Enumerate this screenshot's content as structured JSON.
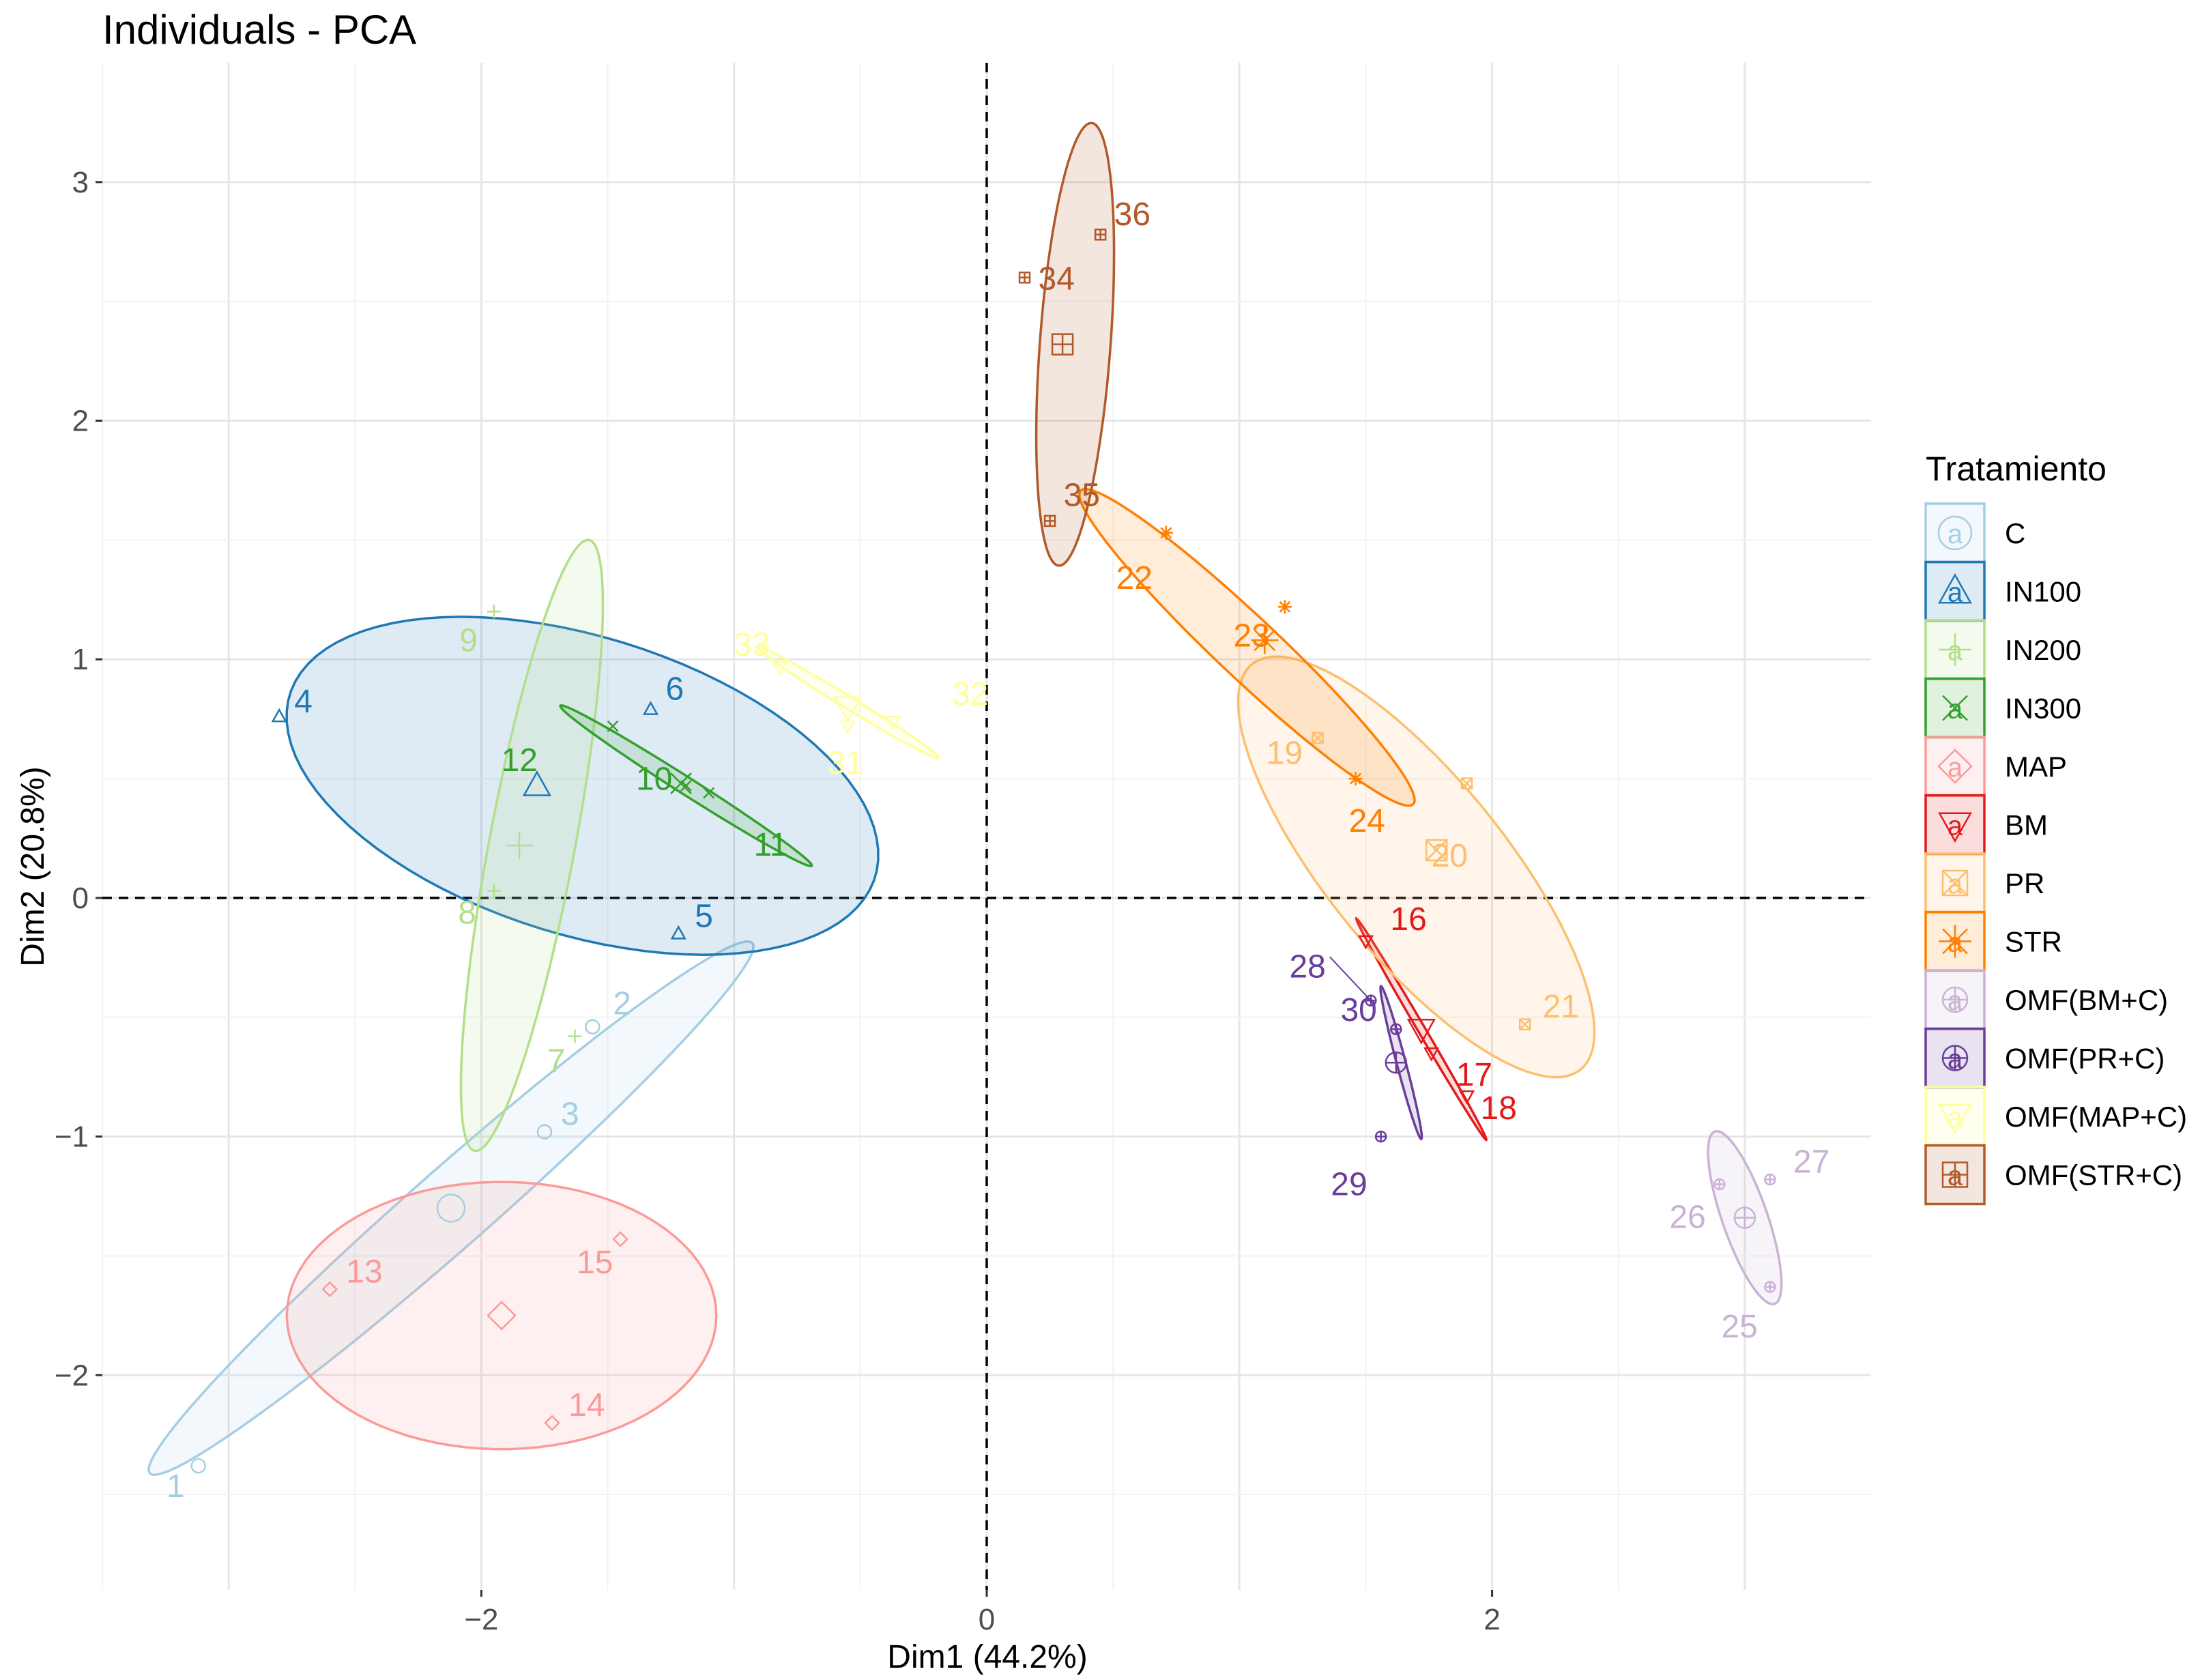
{
  "chart_data": {
    "type": "scatter",
    "title": "Individuals - PCA",
    "xlabel": "Dim1 (44.2%)",
    "ylabel": "Dim2 (20.8%)",
    "xlim": [
      -3.5,
      3.5
    ],
    "ylim": [
      -2.9,
      3.5
    ],
    "xticks": [
      -2,
      0,
      2
    ],
    "xtick_labels": [
      "−2",
      "0",
      "2"
    ],
    "yticks": [
      -2,
      -1,
      0,
      1,
      2,
      3
    ],
    "ytick_labels": [
      "−2",
      "−1",
      "0",
      "1",
      "2",
      "3"
    ],
    "reference_lines": {
      "x": 0,
      "y": 0,
      "style": "dashed"
    },
    "grid": true,
    "legend": {
      "title": "Tratamiento",
      "position": "right"
    },
    "groups": [
      {
        "name": "C",
        "color": "#a6cee3",
        "shape": "circle",
        "center": [
          -2.12,
          -1.3
        ],
        "ellipse": {
          "cx": -2.12,
          "cy": -1.3,
          "rx": 1.63,
          "ry": 0.16,
          "angle_deg": 43
        },
        "points": [
          {
            "id": "1",
            "x": -3.12,
            "y": -2.38
          },
          {
            "id": "2",
            "x": -1.56,
            "y": -0.54
          },
          {
            "id": "3",
            "x": -1.75,
            "y": -0.98
          }
        ]
      },
      {
        "name": "IN100",
        "color": "#1f78b4",
        "shape": "triangle",
        "center": [
          -1.78,
          0.47
        ],
        "ellipse": {
          "cx": -1.6,
          "cy": 0.47,
          "rx": 1.22,
          "ry": 0.62,
          "angle_deg": -19
        },
        "points": [
          {
            "id": "4",
            "x": -2.8,
            "y": 0.76
          },
          {
            "id": "5",
            "x": -1.22,
            "y": -0.15
          },
          {
            "id": "6",
            "x": -1.33,
            "y": 0.79
          }
        ]
      },
      {
        "name": "IN200",
        "color": "#b2df8a",
        "shape": "plus",
        "center": [
          -1.85,
          0.22
        ],
        "ellipse": {
          "cx": -1.8,
          "cy": 0.22,
          "rx": 1.3,
          "ry": 0.17,
          "angle_deg": 80
        },
        "points": [
          {
            "id": "7",
            "x": -1.63,
            "y": -0.58
          },
          {
            "id": "8",
            "x": -1.95,
            "y": 0.03
          },
          {
            "id": "9",
            "x": -1.95,
            "y": 1.2
          }
        ]
      },
      {
        "name": "IN300",
        "color": "#33a02c",
        "shape": "x",
        "center": [
          -1.21,
          0.48
        ],
        "ellipse": {
          "cx": -1.19,
          "cy": 0.47,
          "rx": 0.6,
          "ry": 0.035,
          "angle_deg": -34
        },
        "points": [
          {
            "id": "10",
            "x": -1.19,
            "y": 0.47
          },
          {
            "id": "11",
            "x": -1.1,
            "y": 0.44
          },
          {
            "id": "12",
            "x": -1.48,
            "y": 0.72
          }
        ]
      },
      {
        "name": "MAP",
        "color": "#fb9a99",
        "shape": "diamond",
        "center": [
          -1.92,
          -1.75
        ],
        "ellipse": {
          "cx": -1.92,
          "cy": -1.75,
          "rx": 0.85,
          "ry": 0.56,
          "angle_deg": 0
        },
        "points": [
          {
            "id": "13",
            "x": -2.6,
            "y": -1.64
          },
          {
            "id": "14",
            "x": -1.72,
            "y": -2.2
          },
          {
            "id": "15",
            "x": -1.45,
            "y": -1.43
          }
        ]
      },
      {
        "name": "BM",
        "color": "#e31a1c",
        "shape": "triangle-down",
        "center": [
          1.72,
          -0.55
        ],
        "ellipse": {
          "cx": 1.72,
          "cy": -0.55,
          "rx": 0.53,
          "ry": 0.015,
          "angle_deg": -61
        },
        "points": [
          {
            "id": "16",
            "x": 1.5,
            "y": -0.18
          },
          {
            "id": "17",
            "x": 1.76,
            "y": -0.65
          },
          {
            "id": "18",
            "x": 1.9,
            "y": -0.83
          }
        ]
      },
      {
        "name": "PR",
        "color": "#fdbf6f",
        "shape": "square-x",
        "center": [
          1.78,
          0.2
        ],
        "ellipse": {
          "cx": 1.7,
          "cy": 0.13,
          "rx": 1.07,
          "ry": 0.36,
          "angle_deg": -53
        },
        "points": [
          {
            "id": "19",
            "x": 1.31,
            "y": 0.67
          },
          {
            "id": "20",
            "x": 1.9,
            "y": 0.48
          },
          {
            "id": "21",
            "x": 2.13,
            "y": -0.53
          }
        ]
      },
      {
        "name": "STR",
        "color": "#ff7f00",
        "shape": "asterisk",
        "center": [
          1.1,
          1.08
        ],
        "ellipse": {
          "cx": 1.03,
          "cy": 1.05,
          "rx": 0.93,
          "ry": 0.125,
          "angle_deg": -45
        },
        "points": [
          {
            "id": "22",
            "x": 0.71,
            "y": 1.53
          },
          {
            "id": "23",
            "x": 1.18,
            "y": 1.22
          },
          {
            "id": "24",
            "x": 1.46,
            "y": 0.5
          }
        ]
      },
      {
        "name": "OMF(BM+C)",
        "color": "#cab2d6",
        "shape": "circle-plus",
        "center": [
          3.0,
          -1.34
        ],
        "ellipse": {
          "cx": 3.0,
          "cy": -1.34,
          "rx": 0.38,
          "ry": 0.09,
          "angle_deg": -72
        },
        "points": [
          {
            "id": "25",
            "x": 3.1,
            "y": -1.63
          },
          {
            "id": "26",
            "x": 2.9,
            "y": -1.2
          },
          {
            "id": "27",
            "x": 3.1,
            "y": -1.18
          }
        ]
      },
      {
        "name": "OMF(PR+C)",
        "color": "#6a3d9a",
        "shape": "circle-plus",
        "center": [
          1.62,
          -0.69
        ],
        "ellipse": {
          "cx": 1.64,
          "cy": -0.69,
          "rx": 0.33,
          "ry": 0.018,
          "angle_deg": -76
        },
        "points": [
          {
            "id": "28",
            "x": 1.52,
            "y": -0.43
          },
          {
            "id": "29",
            "x": 1.56,
            "y": -1.0
          },
          {
            "id": "30",
            "x": 1.62,
            "y": -0.55
          }
        ]
      },
      {
        "name": "OMF(MAP+C)",
        "color": "#ffff99",
        "shape": "triangle-down",
        "center": [
          -0.55,
          0.8
        ],
        "ellipse": {
          "cx": -0.55,
          "cy": 0.82,
          "rx": 0.43,
          "ry": 0.025,
          "angle_deg": -33
        },
        "points": [
          {
            "id": "31",
            "x": -0.55,
            "y": 0.72
          },
          {
            "id": "32",
            "x": -0.37,
            "y": 0.74
          },
          {
            "id": "33",
            "x": -0.82,
            "y": 0.97
          }
        ]
      },
      {
        "name": "OMF(STR+C)",
        "color": "#b15928",
        "shape": "square-plus",
        "center": [
          0.3,
          2.32
        ],
        "ellipse": {
          "cx": 0.35,
          "cy": 2.32,
          "rx": 0.93,
          "ry": 0.14,
          "angle_deg": 86
        },
        "points": [
          {
            "id": "34",
            "x": 0.15,
            "y": 2.6
          },
          {
            "id": "35",
            "x": 0.25,
            "y": 1.58
          },
          {
            "id": "36",
            "x": 0.45,
            "y": 2.78
          }
        ]
      }
    ]
  }
}
